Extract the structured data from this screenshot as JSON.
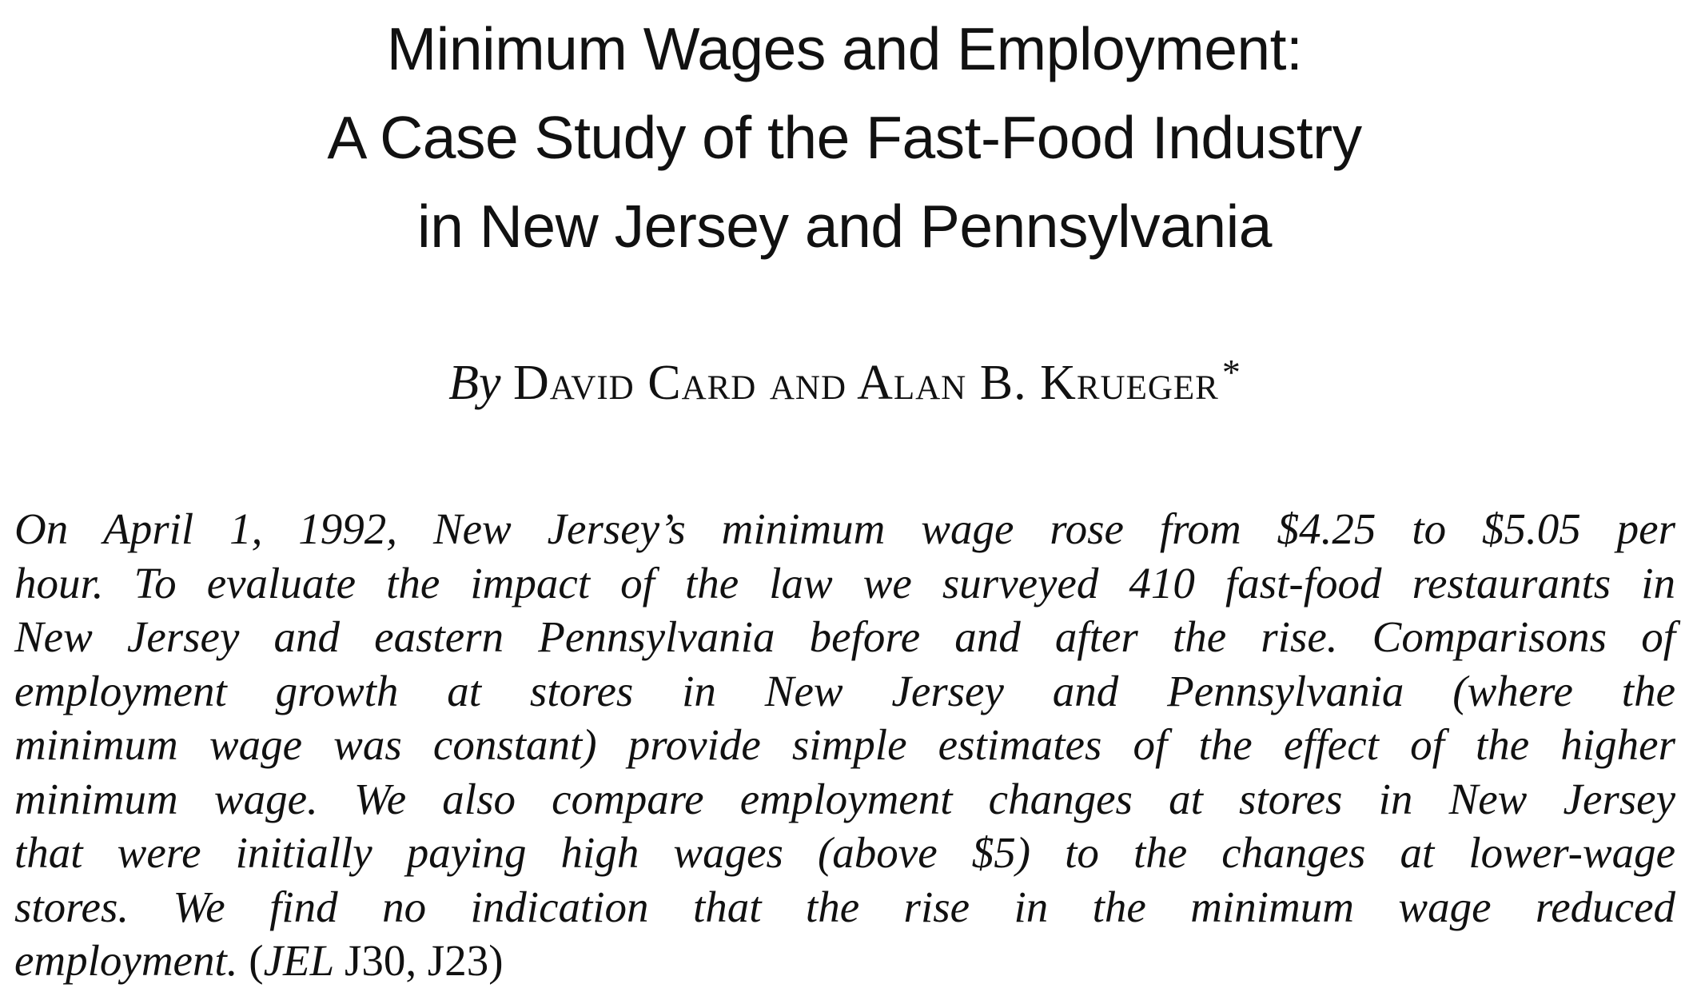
{
  "title": {
    "lines": [
      "Minimum Wages and Employment:",
      "A Case Study of the Fast-Food Industry",
      "in New Jersey and Pennsylvania"
    ]
  },
  "byline": {
    "prefix": "By",
    "authors": "David Card and Alan B. Krueger",
    "footnote_mark": "*"
  },
  "abstract": {
    "lines": [
      "On April 1, 1992, New Jersey’s minimum wage rose from $4.25 to $5.05 per",
      "hour. To evaluate the impact of the law we surveyed 410 fast-food restaurants in",
      "New Jersey and eastern Pennsylvania before and after the rise. Comparisons of",
      "employment growth at stores in New Jersey and Pennsylvania (where the",
      "minimum wage was constant) provide simple estimates of the effect of the higher",
      "minimum wage. We also compare employment changes at stores in New Jersey",
      "that were initially paying high wages (above $5) to the changes at lower-wage",
      "stores. We find no indication that the rise in the minimum wage reduced"
    ],
    "last_line_text": "employment.",
    "jel_open": "(",
    "jel_label": "JEL",
    "jel_codes": "J30, J23)"
  }
}
